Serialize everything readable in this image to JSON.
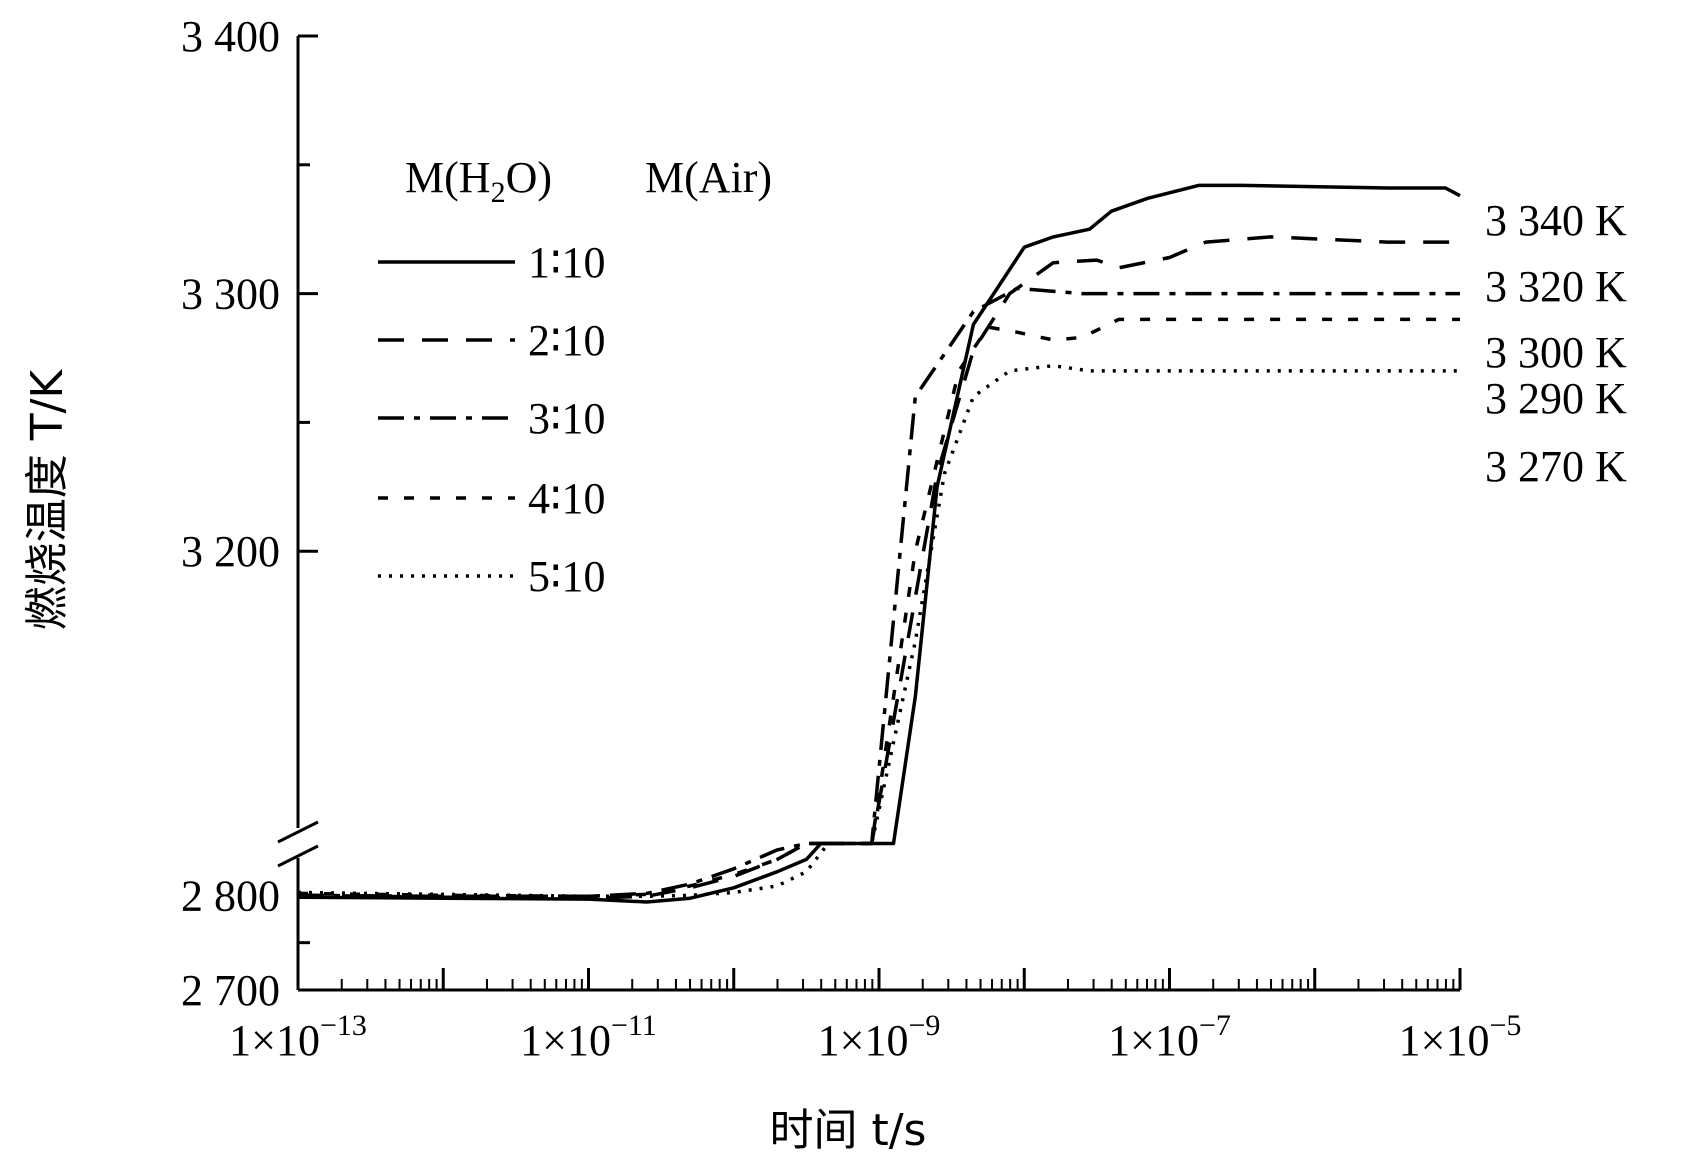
{
  "chart_data": {
    "type": "line",
    "title": "",
    "xlabel": "时间 t/s",
    "ylabel": "燃烧温度 T/K",
    "x_scale": "log",
    "xlim": [
      1e-13,
      1e-05
    ],
    "ylim": [
      2700,
      3400
    ],
    "y_axis_break": [
      2850,
      3150
    ],
    "x_ticks": [
      {
        "value": 1e-13,
        "label": "1×10",
        "exp": "−13"
      },
      {
        "value": 1e-11,
        "label": "1×10",
        "exp": "−11"
      },
      {
        "value": 1e-09,
        "label": "1×10",
        "exp": "−9"
      },
      {
        "value": 1e-07,
        "label": "1×10",
        "exp": "−7"
      },
      {
        "value": 1e-05,
        "label": "1×10",
        "exp": "−5"
      }
    ],
    "y_ticks": [
      {
        "value": 2700,
        "label": "2 700"
      },
      {
        "value": 2800,
        "label": "2 800"
      },
      {
        "value": 3200,
        "label": "3 200"
      },
      {
        "value": 3300,
        "label": "3 300"
      },
      {
        "value": 3400,
        "label": "3 400"
      }
    ],
    "legend": {
      "header_left": "M(H",
      "header_sub": "2",
      "header_mid": "O)",
      "header_right": "M(Air)",
      "placement": "upper-left"
    },
    "series": [
      {
        "name": "1∶10",
        "dash": "solid",
        "end_label": "3 340 K",
        "points": [
          [
            -13,
            2798
          ],
          [
            -12,
            2797
          ],
          [
            -11,
            2796
          ],
          [
            -10.6,
            2793
          ],
          [
            -10.3,
            2797
          ],
          [
            -10,
            2808
          ],
          [
            -9.7,
            2825
          ],
          [
            -9.5,
            2838
          ],
          [
            -9.4,
            2858
          ],
          [
            -8.9,
            2858
          ],
          [
            -8.75,
            3120
          ],
          [
            -8.6,
            3225
          ],
          [
            -8.35,
            3288
          ],
          [
            -8,
            3318
          ],
          [
            -7.8,
            3322
          ],
          [
            -7.55,
            3325
          ],
          [
            -7.4,
            3332
          ],
          [
            -7.15,
            3337
          ],
          [
            -6.8,
            3342
          ],
          [
            -6.5,
            3342
          ],
          [
            -5.5,
            3341
          ],
          [
            -5.1,
            3341
          ],
          [
            -5,
            3338
          ]
        ]
      },
      {
        "name": "2∶10",
        "dash": "26 18",
        "end_label": "3 320 K",
        "points": [
          [
            -13,
            2800
          ],
          [
            -12,
            2798
          ],
          [
            -11,
            2797
          ],
          [
            -10.6,
            2799
          ],
          [
            -10.3,
            2808
          ],
          [
            -10,
            2820
          ],
          [
            -9.7,
            2838
          ],
          [
            -9.5,
            2858
          ],
          [
            -9.05,
            2858
          ],
          [
            -8.85,
            3150
          ],
          [
            -8.6,
            3230
          ],
          [
            -8.35,
            3278
          ],
          [
            -8.1,
            3300
          ],
          [
            -7.8,
            3312
          ],
          [
            -7.5,
            3313
          ],
          [
            -7.35,
            3310
          ],
          [
            -7,
            3314
          ],
          [
            -6.75,
            3320
          ],
          [
            -6.3,
            3322
          ],
          [
            -5.5,
            3320
          ],
          [
            -5,
            3320
          ]
        ]
      },
      {
        "name": "3∶10",
        "dash": "26 10 6 10",
        "end_label": "3 300 K",
        "points": [
          [
            -13,
            2800
          ],
          [
            -12,
            2799
          ],
          [
            -11,
            2799
          ],
          [
            -10.6,
            2802
          ],
          [
            -10.3,
            2812
          ],
          [
            -10,
            2828
          ],
          [
            -9.7,
            2848
          ],
          [
            -9.5,
            2858
          ],
          [
            -9.05,
            2858
          ],
          [
            -8.75,
            3260
          ],
          [
            -8.35,
            3293
          ],
          [
            -8.05,
            3302
          ],
          [
            -7.6,
            3300
          ],
          [
            -7,
            3300
          ],
          [
            -6,
            3300
          ],
          [
            -5,
            3300
          ]
        ]
      },
      {
        "name": "4∶10",
        "dash": "10 16",
        "end_label": "3 290 K",
        "points": [
          [
            -13,
            2802
          ],
          [
            -12,
            2800
          ],
          [
            -11,
            2799
          ],
          [
            -10.6,
            2801
          ],
          [
            -10.3,
            2810
          ],
          [
            -10,
            2822
          ],
          [
            -9.7,
            2838
          ],
          [
            -9.5,
            2858
          ],
          [
            -9.05,
            2858
          ],
          [
            -8.75,
            3200
          ],
          [
            -8.45,
            3270
          ],
          [
            -8.25,
            3287
          ],
          [
            -8.05,
            3285
          ],
          [
            -7.8,
            3282
          ],
          [
            -7.6,
            3283
          ],
          [
            -7.35,
            3290
          ],
          [
            -7,
            3290
          ],
          [
            -6,
            3290
          ],
          [
            -5,
            3290
          ]
        ]
      },
      {
        "name": "5∶10",
        "dash": "3 8",
        "end_label": "3 270 K",
        "points": [
          [
            -13,
            2803
          ],
          [
            -12,
            2801
          ],
          [
            -11,
            2799
          ],
          [
            -10.6,
            2799
          ],
          [
            -10.3,
            2800
          ],
          [
            -10,
            2803
          ],
          [
            -9.7,
            2810
          ],
          [
            -9.5,
            2825
          ],
          [
            -9.35,
            2858
          ],
          [
            -9.05,
            2858
          ],
          [
            -8.75,
            3165
          ],
          [
            -8.55,
            3230
          ],
          [
            -8.35,
            3260
          ],
          [
            -8.1,
            3270
          ],
          [
            -7.8,
            3272
          ],
          [
            -7.55,
            3270
          ],
          [
            -7,
            3270
          ],
          [
            -6,
            3270
          ],
          [
            -5,
            3270
          ]
        ]
      }
    ]
  }
}
